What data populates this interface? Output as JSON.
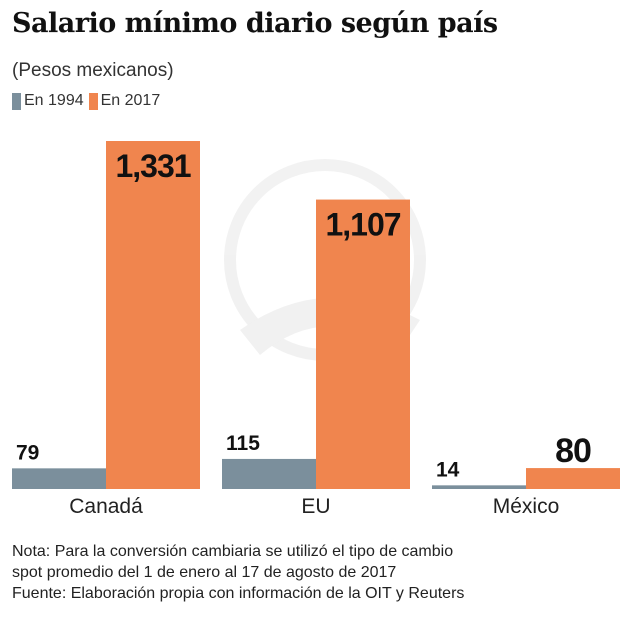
{
  "chart_data": {
    "type": "bar",
    "title": "Salario mínimo diario según país",
    "subtitle": "(Pesos mexicanos)",
    "categories": [
      "Canadá",
      "EU",
      "México"
    ],
    "series": [
      {
        "name": "En 1994",
        "values": [
          79,
          115,
          14
        ],
        "labels": [
          "79",
          "115",
          "14"
        ],
        "color": "#7b8f9c"
      },
      {
        "name": "En 2017",
        "values": [
          1331,
          1107,
          80
        ],
        "labels": [
          "1,331",
          "1,107",
          "80"
        ],
        "color": "#f0854e"
      }
    ],
    "ylim": [
      0,
      1331
    ],
    "grid": false,
    "legend": "top-left"
  },
  "notes": [
    "Nota: Para la conversión cambiaria se utilizó el tipo de cambio",
    "spot promedio del 1 de enero al 17 de agosto de 2017",
    "Fuente: Elaboración propia con información de la OIT y Reuters"
  ]
}
